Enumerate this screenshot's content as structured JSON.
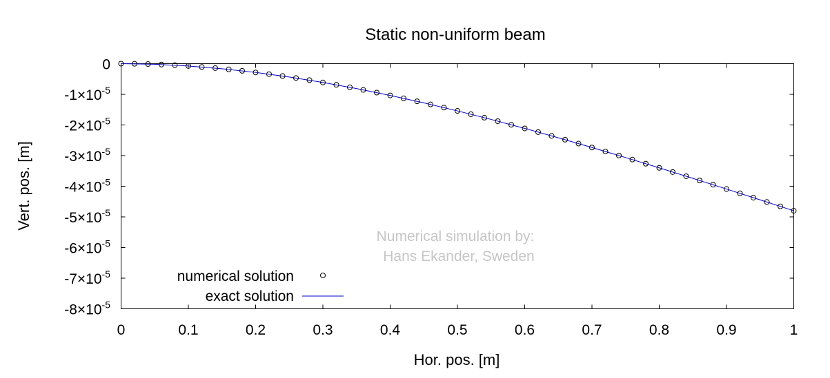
{
  "chart_data": {
    "type": "line",
    "title": "Static non-uniform beam",
    "xlabel": "Hor. pos. [m]",
    "ylabel": "Vert. pos. [m]",
    "xlim": [
      0,
      1
    ],
    "ylim": [
      -8e-05,
      0
    ],
    "grid": false,
    "legend_placement": "bottom-left",
    "annotation": [
      "Numerical simulation by:",
      "Hans Ekander, Sweden"
    ],
    "x_ticks": [
      {
        "value": 0,
        "label": "0"
      },
      {
        "value": 0.1,
        "label": "0.1"
      },
      {
        "value": 0.2,
        "label": "0.2"
      },
      {
        "value": 0.3,
        "label": "0.3"
      },
      {
        "value": 0.4,
        "label": "0.4"
      },
      {
        "value": 0.5,
        "label": "0.5"
      },
      {
        "value": 0.6,
        "label": "0.6"
      },
      {
        "value": 0.7,
        "label": "0.7"
      },
      {
        "value": 0.8,
        "label": "0.8"
      },
      {
        "value": 0.9,
        "label": "0.9"
      },
      {
        "value": 1,
        "label": "1"
      }
    ],
    "y_ticks": [
      {
        "value": 0,
        "label": "0",
        "exp": ""
      },
      {
        "value": -1e-05,
        "label": "-1×10",
        "exp": "-5"
      },
      {
        "value": -2e-05,
        "label": "-2×10",
        "exp": "-5"
      },
      {
        "value": -3e-05,
        "label": "-3×10",
        "exp": "-5"
      },
      {
        "value": -4e-05,
        "label": "-4×10",
        "exp": "-5"
      },
      {
        "value": -5e-05,
        "label": "-5×10",
        "exp": "-5"
      },
      {
        "value": -6e-05,
        "label": "-6×10",
        "exp": "-5"
      },
      {
        "value": -7e-05,
        "label": "-7×10",
        "exp": "-5"
      },
      {
        "value": -8e-05,
        "label": "-8×10",
        "exp": "-5"
      }
    ],
    "series": [
      {
        "name": "numerical solution",
        "style": "points",
        "marker": "open-circle",
        "color": "#000000",
        "x": [
          0,
          0.02,
          0.04,
          0.06,
          0.08,
          0.1,
          0.12,
          0.14,
          0.16,
          0.18,
          0.2,
          0.22,
          0.24,
          0.26,
          0.28,
          0.3,
          0.32,
          0.34,
          0.36,
          0.38,
          0.4,
          0.42,
          0.44,
          0.46,
          0.48,
          0.5,
          0.52,
          0.54,
          0.56,
          0.58,
          0.6,
          0.62,
          0.64,
          0.66,
          0.68,
          0.7,
          0.72,
          0.74,
          0.76,
          0.78,
          0.8,
          0.82,
          0.84,
          0.86,
          0.88,
          0.9,
          0.92,
          0.94,
          0.96,
          0.98,
          1
        ],
        "y": [
          0,
          -3.1e-08,
          -1.23e-07,
          -2.74e-07,
          -4.83e-07,
          -7.48e-07,
          -1.067e-06,
          -1.438e-06,
          -1.86e-06,
          -2.332e-06,
          -2.852e-06,
          -3.417e-06,
          -4.028e-06,
          -4.682e-06,
          -5.378e-06,
          -6.114e-06,
          -6.889e-06,
          -7.702e-06,
          -8.551e-06,
          -9.436e-06,
          -1.0354e-05,
          -1.1304e-05,
          -1.2286e-05,
          -1.3298e-05,
          -1.4338e-05,
          -1.5406e-05,
          -1.6501e-05,
          -1.762e-05,
          -1.8764e-05,
          -1.9931e-05,
          -2.112e-05,
          -2.233e-05,
          -2.3559e-05,
          -2.4807e-05,
          -2.6074e-05,
          -2.7357e-05,
          -2.8656e-05,
          -2.997e-05,
          -3.1298e-05,
          -3.2639e-05,
          -3.3992e-05,
          -3.5356e-05,
          -3.6731e-05,
          -3.8115e-05,
          -3.9508e-05,
          -4.0909e-05,
          -4.2316e-05,
          -4.3729e-05,
          -4.5148e-05,
          -4.657e-05,
          -4.7997e-05
        ]
      },
      {
        "name": "exact solution",
        "style": "line",
        "color": "#0000cc",
        "x": [
          0,
          0.05,
          0.1,
          0.15,
          0.2,
          0.25,
          0.3,
          0.35,
          0.4,
          0.45,
          0.5,
          0.55,
          0.6,
          0.65,
          0.7,
          0.75,
          0.8,
          0.85,
          0.9,
          0.95,
          1
        ],
        "y": [
          0,
          -1.9e-07,
          -7.48e-07,
          -1.645e-06,
          -2.852e-06,
          -4.349e-06,
          -6.114e-06,
          -8.121e-06,
          -1.0354e-05,
          -1.2789e-05,
          -1.5406e-05,
          -1.8186e-05,
          -2.112e-05,
          -2.4181e-05,
          -2.7357e-05,
          -3.0632e-05,
          -3.3992e-05,
          -3.7422e-05,
          -4.0909e-05,
          -4.4438e-05,
          -4.7997e-05
        ]
      }
    ]
  }
}
